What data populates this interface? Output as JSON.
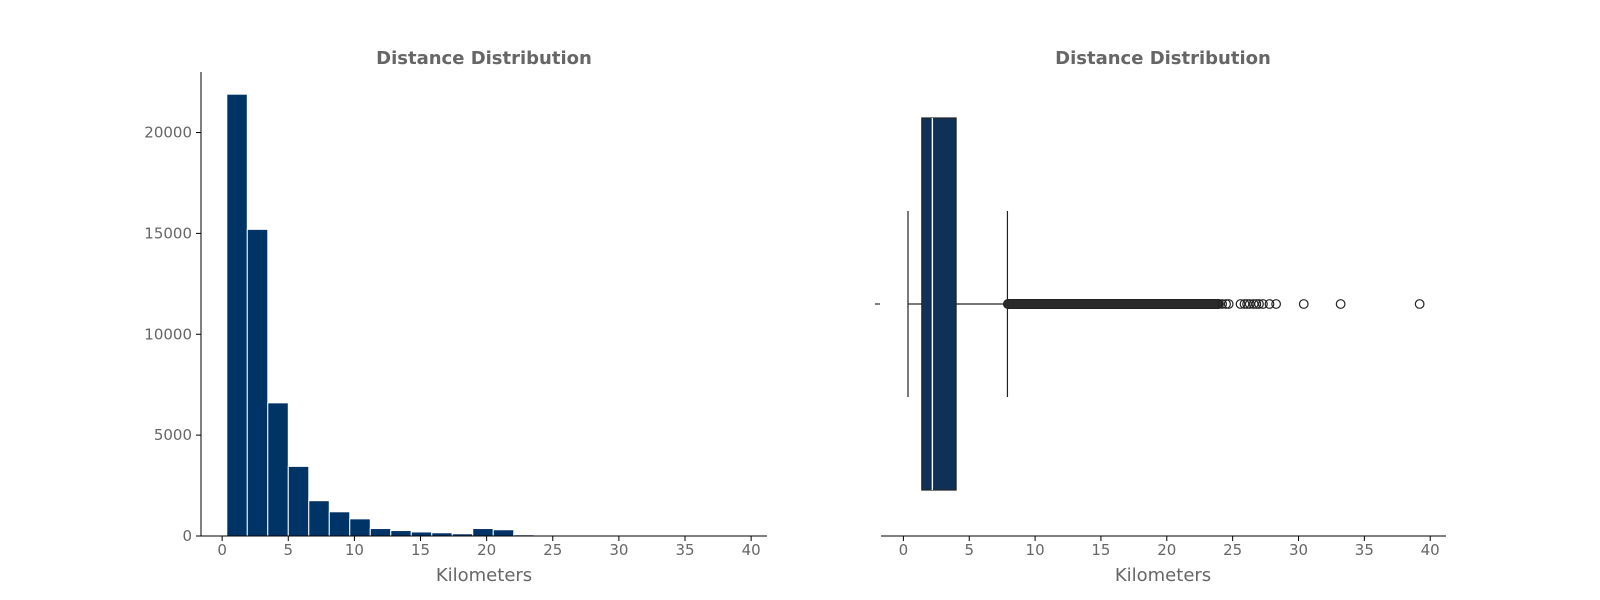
{
  "chart_data": [
    {
      "type": "bar",
      "subtype": "histogram",
      "title": "Distance Distribution",
      "xlabel": "Kilometers",
      "ylabel": "",
      "xlim": [
        -1.6,
        41.2
      ],
      "ylim": [
        0,
        23000
      ],
      "xticks": [
        0,
        5,
        10,
        15,
        20,
        25,
        30,
        35,
        40
      ],
      "yticks": [
        0,
        5000,
        10000,
        15000,
        20000
      ],
      "bin_width": 1.55,
      "bins": [
        {
          "x0": 0.35,
          "count": 21900
        },
        {
          "x0": 1.9,
          "count": 15200
        },
        {
          "x0": 3.45,
          "count": 6600
        },
        {
          "x0": 5.0,
          "count": 3450
        },
        {
          "x0": 6.55,
          "count": 1750
        },
        {
          "x0": 8.1,
          "count": 1200
        },
        {
          "x0": 9.65,
          "count": 850
        },
        {
          "x0": 11.2,
          "count": 370
        },
        {
          "x0": 12.75,
          "count": 270
        },
        {
          "x0": 14.3,
          "count": 200
        },
        {
          "x0": 15.85,
          "count": 160
        },
        {
          "x0": 17.4,
          "count": 110
        },
        {
          "x0": 18.95,
          "count": 370
        },
        {
          "x0": 20.5,
          "count": 310
        },
        {
          "x0": 22.05,
          "count": 60
        },
        {
          "x0": 23.6,
          "count": 15
        },
        {
          "x0": 25.15,
          "count": 6
        },
        {
          "x0": 26.7,
          "count": 4
        },
        {
          "x0": 28.25,
          "count": 2
        },
        {
          "x0": 29.8,
          "count": 1
        },
        {
          "x0": 31.35,
          "count": 1
        },
        {
          "x0": 32.9,
          "count": 1
        },
        {
          "x0": 37.55,
          "count": 1
        }
      ],
      "color": "#003366",
      "edge_color": "#ffffff",
      "grid": false
    },
    {
      "type": "box",
      "title": "Distance Distribution",
      "xlabel": "Kilometers",
      "xlim": [
        -1.7,
        41.2
      ],
      "xticks": [
        0,
        5,
        10,
        15,
        20,
        25,
        30,
        35,
        40
      ],
      "whisker_low": 0.35,
      "q1": 1.4,
      "median": 2.2,
      "q3": 4.0,
      "whisker_high": 7.9,
      "outlier_dense_range": [
        7.9,
        24.0
      ],
      "outliers": [
        24.2,
        24.5,
        24.7,
        25.6,
        25.9,
        26.1,
        26.3,
        26.6,
        26.8,
        27.0,
        27.3,
        27.8,
        28.3,
        30.4,
        33.2,
        39.2
      ],
      "box_color": "#0f3157",
      "median_color": "#ffffff",
      "grid": false
    }
  ]
}
